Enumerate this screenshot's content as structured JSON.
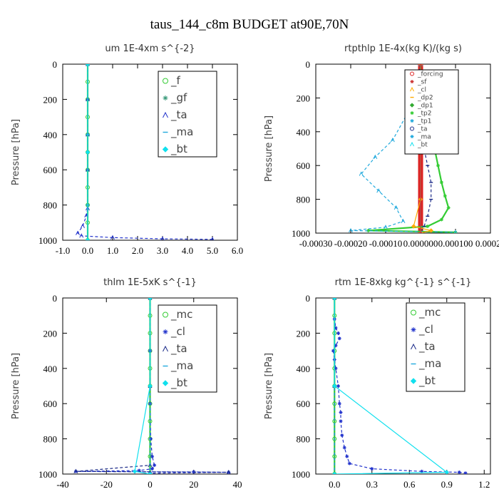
{
  "figure": {
    "title": "taus_144_c8m  BUDGET at90E,70N"
  },
  "colors": {
    "green": "#33cc33",
    "teal": "#3a9a7a",
    "blue": "#2233cc",
    "cyan_dash": "#22aadd",
    "cyan": "#11e0ee",
    "red": "#dd2222",
    "dkred": "#cc3333",
    "orange": "#ffaa00",
    "dkblue": "#1a2a88"
  },
  "chart_data": [
    {
      "type": "line",
      "title": "um  1E-4xm s^{-2}",
      "ylabel": "Pressure [hPa]",
      "xlim": [
        -1.0,
        6.0
      ],
      "ylim": [
        1000,
        0
      ],
      "xticks": [
        "-1.0",
        "0.0",
        "1.0",
        "2.0",
        "3.0",
        "4.0",
        "5.0",
        "6.0"
      ],
      "yticks": [
        "0",
        "200",
        "400",
        "600",
        "800",
        "1000"
      ],
      "legend": {
        "position": "top-right",
        "entries": [
          "_f",
          "_gf",
          "_ta",
          "_ma",
          "_bt"
        ]
      },
      "series": [
        {
          "name": "_f",
          "color": "green",
          "points": [
            [
              0.0,
              0
            ],
            [
              0.0,
              100
            ],
            [
              0.0,
              200
            ],
            [
              0.0,
              300
            ],
            [
              0.0,
              400
            ],
            [
              0.0,
              500
            ],
            [
              0.0,
              600
            ],
            [
              0.0,
              700
            ],
            [
              0.0,
              800
            ],
            [
              0.0,
              900
            ],
            [
              0.0,
              1000
            ]
          ]
        },
        {
          "name": "_gf",
          "color": "teal",
          "points": [
            [
              0.0,
              0
            ],
            [
              0.0,
              200
            ],
            [
              0.0,
              400
            ],
            [
              0.0,
              600
            ],
            [
              0.0,
              800
            ],
            [
              0.0,
              1000
            ]
          ]
        },
        {
          "name": "_ta",
          "color": "blue",
          "points": [
            [
              0.0,
              0
            ],
            [
              0.0,
              200
            ],
            [
              0.0,
              400
            ],
            [
              0.0,
              600
            ],
            [
              0.0,
              820
            ],
            [
              -0.05,
              860
            ],
            [
              -0.2,
              920
            ],
            [
              -0.4,
              960
            ],
            [
              -0.25,
              975
            ],
            [
              1.0,
              985
            ],
            [
              3.0,
              992
            ],
            [
              5.0,
              995
            ]
          ]
        },
        {
          "name": "_ma",
          "color": "cyan_dash",
          "points": [
            [
              0.0,
              0
            ],
            [
              0.0,
              400
            ],
            [
              0.0,
              800
            ],
            [
              0.0,
              1000
            ]
          ]
        },
        {
          "name": "_bt",
          "color": "cyan",
          "points": [
            [
              0.0,
              0
            ],
            [
              0.0,
              500
            ],
            [
              0.0,
              1000
            ]
          ]
        }
      ]
    },
    {
      "type": "line",
      "title": "rtpthlp  1E-4x(kg K)/(kg s)",
      "ylabel": "Pressure [hPa]",
      "xlim": [
        -0.0003,
        0.0002
      ],
      "ylim": [
        1000,
        0
      ],
      "xticks": [
        "-0.00030",
        "-0.00020",
        "-0.00010",
        "0.000000",
        "0.000100",
        "0.00020"
      ],
      "yticks": [
        "0",
        "200",
        "400",
        "600",
        "800",
        "1000"
      ],
      "legend": {
        "position": "top-right",
        "entries": [
          "_forcing",
          "_sf",
          "_cl",
          "_dp2",
          "_dp1",
          "_tp2",
          "_tp1",
          "_ta",
          "_ma",
          "_bt"
        ]
      },
      "series": [
        {
          "name": "_forcing",
          "color": "red",
          "points": [
            [
              0.0,
              0
            ],
            [
              0.0,
              200
            ],
            [
              0.0,
              400
            ],
            [
              0.0,
              600
            ],
            [
              0.0,
              800
            ],
            [
              0.0,
              1000
            ]
          ]
        },
        {
          "name": "_tp2",
          "color": "green",
          "points": [
            [
              0.0,
              0
            ],
            [
              0.0,
              100
            ],
            [
              1e-05,
              200
            ],
            [
              2e-05,
              300
            ],
            [
              3e-05,
              400
            ],
            [
              4e-05,
              500
            ],
            [
              5e-05,
              600
            ],
            [
              6e-05,
              700
            ],
            [
              7e-05,
              780
            ],
            [
              8e-05,
              850
            ],
            [
              6e-05,
              920
            ],
            [
              2e-05,
              960
            ],
            [
              -0.00015,
              985
            ],
            [
              0.0001,
              995
            ]
          ]
        },
        {
          "name": "_tp1",
          "color": "cyan_dash",
          "points": [
            [
              0.0,
              0
            ],
            [
              -1e-05,
              100
            ],
            [
              -2e-05,
              200
            ],
            [
              -4e-05,
              300
            ],
            [
              -8e-05,
              450
            ],
            [
              -0.00013,
              550
            ],
            [
              -0.00017,
              650
            ],
            [
              -0.00012,
              750
            ],
            [
              -7e-05,
              850
            ],
            [
              -5e-05,
              930
            ],
            [
              -0.0001,
              965
            ],
            [
              -0.0002,
              985
            ],
            [
              0.0001,
              995
            ]
          ]
        },
        {
          "name": "_ta",
          "color": "dkblue",
          "points": [
            [
              0.0,
              0
            ],
            [
              -1e-05,
              100
            ],
            [
              -3e-05,
              200
            ],
            [
              -2e-05,
              300
            ],
            [
              -1e-05,
              400
            ],
            [
              1e-05,
              500
            ],
            [
              2e-05,
              600
            ],
            [
              3e-05,
              700
            ],
            [
              3e-05,
              800
            ],
            [
              2e-05,
              900
            ],
            [
              1e-05,
              960
            ],
            [
              0.0,
              1000
            ]
          ]
        },
        {
          "name": "_cl",
          "color": "orange",
          "points": [
            [
              0.0,
              0
            ],
            [
              0.0,
              800
            ],
            [
              -2e-05,
              960
            ],
            [
              3e-05,
              985
            ],
            [
              0.0,
              1000
            ]
          ]
        },
        {
          "name": "_bt",
          "color": "cyan",
          "points": [
            [
              0.0,
              0
            ],
            [
              0.0,
              500
            ],
            [
              0.0,
              1000
            ]
          ]
        },
        {
          "name": "_sf",
          "color": "dkred",
          "points": [
            [
              0.0,
              0
            ],
            [
              0.0,
              500
            ],
            [
              0.0,
              1000
            ]
          ]
        }
      ]
    },
    {
      "type": "line",
      "title": "thlm  1E-5xK s^{-1}",
      "ylabel": "Pressure [hPa]",
      "xlim": [
        -40,
        40
      ],
      "ylim": [
        1000,
        0
      ],
      "xticks": [
        "-40",
        "-20",
        "0",
        "20",
        "40"
      ],
      "yticks": [
        "0",
        "200",
        "400",
        "600",
        "800",
        "1000"
      ],
      "legend": {
        "position": "top-right",
        "entries": [
          "_mc",
          "_cl",
          "_ta",
          "_ma",
          "_bt"
        ]
      },
      "series": [
        {
          "name": "_mc",
          "color": "green",
          "points": [
            [
              0,
              0
            ],
            [
              0,
              100
            ],
            [
              0,
              200
            ],
            [
              0,
              300
            ],
            [
              0,
              400
            ],
            [
              0,
              500
            ],
            [
              0,
              600
            ],
            [
              0,
              700
            ],
            [
              0,
              800
            ],
            [
              0,
              900
            ],
            [
              0,
              1000
            ]
          ]
        },
        {
          "name": "_cl",
          "color": "blue",
          "points": [
            [
              0,
              0
            ],
            [
              0,
              300
            ],
            [
              0,
              600
            ],
            [
              0.3,
              800
            ],
            [
              1,
              900
            ],
            [
              2,
              950
            ],
            [
              1,
              970
            ],
            [
              -5,
              980
            ],
            [
              -34,
              985
            ],
            [
              20,
              988
            ],
            [
              36,
              990
            ],
            [
              0,
              995
            ]
          ]
        },
        {
          "name": "_ta",
          "color": "dkblue",
          "points": [
            [
              0,
              0
            ],
            [
              0,
              500
            ],
            [
              0,
              950
            ],
            [
              -34,
              985
            ],
            [
              36,
              990
            ]
          ]
        },
        {
          "name": "_ma",
          "color": "cyan_dash",
          "points": [
            [
              0,
              0
            ],
            [
              0,
              500
            ],
            [
              0,
              1000
            ]
          ]
        },
        {
          "name": "_bt",
          "color": "cyan",
          "points": [
            [
              0,
              0
            ],
            [
              0,
              500
            ],
            [
              -7,
              985
            ],
            [
              0,
              1000
            ]
          ]
        }
      ]
    },
    {
      "type": "line",
      "title": "rtm  1E-8xkg kg^{-1} s^{-1}",
      "ylabel": "Pressure [hPa]",
      "xlim": [
        -0.15,
        1.25
      ],
      "ylim": [
        1000,
        0
      ],
      "xticks": [
        "0.0",
        "0.3",
        "0.6",
        "0.9",
        "1.2"
      ],
      "yticks": [
        "0",
        "200",
        "400",
        "600",
        "800",
        "1000"
      ],
      "legend": {
        "position": "top-right",
        "entries": [
          "_mc",
          "_cl",
          "_ta",
          "_ma",
          "_bt"
        ]
      },
      "series": [
        {
          "name": "_mc",
          "color": "green",
          "points": [
            [
              0,
              0
            ],
            [
              0,
              100
            ],
            [
              0,
              200
            ],
            [
              0,
              300
            ],
            [
              0,
              400
            ],
            [
              0,
              500
            ],
            [
              0,
              600
            ],
            [
              0,
              700
            ],
            [
              0,
              800
            ],
            [
              0,
              900
            ],
            [
              0,
              1000
            ]
          ]
        },
        {
          "name": "_cl",
          "color": "blue",
          "points": [
            [
              0,
              0
            ],
            [
              0,
              120
            ],
            [
              0.01,
              170
            ],
            [
              0.03,
              200
            ],
            [
              0.04,
              230
            ],
            [
              0.01,
              270
            ],
            [
              -0.01,
              300
            ],
            [
              0,
              350
            ],
            [
              0.01,
              400
            ],
            [
              0.03,
              500
            ],
            [
              0.04,
              600
            ],
            [
              0.05,
              650
            ],
            [
              0.05,
              700
            ],
            [
              0.06,
              780
            ],
            [
              0.08,
              850
            ],
            [
              0.1,
              900
            ],
            [
              0.12,
              940
            ],
            [
              0.3,
              970
            ],
            [
              0.7,
              985
            ],
            [
              1.0,
              990
            ],
            [
              1.05,
              995
            ]
          ]
        },
        {
          "name": "_ta",
          "color": "dkblue",
          "points": [
            [
              0,
              0
            ],
            [
              0,
              500
            ],
            [
              0,
              1000
            ]
          ]
        },
        {
          "name": "_ma",
          "color": "cyan_dash",
          "points": [
            [
              0,
              0
            ],
            [
              0,
              500
            ],
            [
              0,
              1000
            ]
          ]
        },
        {
          "name": "_bt",
          "color": "cyan",
          "points": [
            [
              0,
              0
            ],
            [
              0,
              500
            ],
            [
              0.9,
              990
            ],
            [
              0,
              1000
            ]
          ]
        }
      ]
    }
  ]
}
